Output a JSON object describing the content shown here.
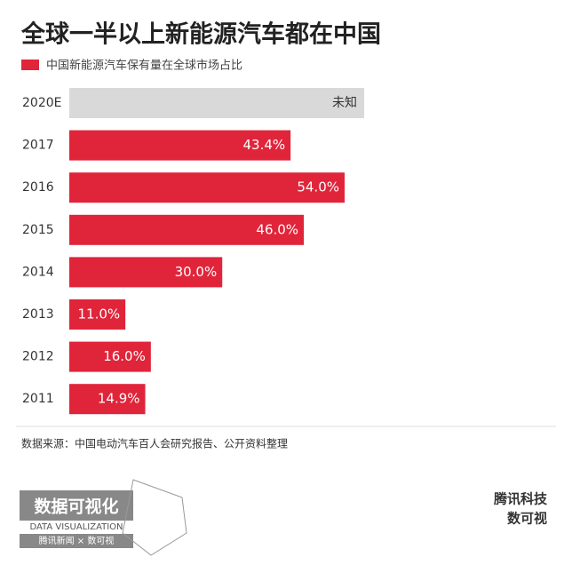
{
  "chart_data": {
    "type": "bar",
    "orientation": "horizontal",
    "title": "全球一半以上新能源汽车都在中国",
    "series_name": "中国新能源汽车保有量在全球市场占比",
    "categories": [
      "2020E",
      "2017",
      "2016",
      "2015",
      "2014",
      "2013",
      "2012",
      "2011"
    ],
    "values": [
      null,
      43.4,
      54.0,
      46.0,
      30.0,
      11.0,
      16.0,
      14.9
    ],
    "value_labels": [
      "未知",
      "43.4%",
      "54.0%",
      "46.0%",
      "30.0%",
      "11.0%",
      "16.0%",
      "14.9%"
    ],
    "color": "#e0253a",
    "unknown_color": "#d9d9d9",
    "source": "数据来源：中国电动汽车百人会研究报告、公开资料整理"
  },
  "footer": {
    "logo_title": "数据可视化",
    "logo_subtitle": "DATA VISUALIZATION",
    "logo_brand": "腾讯新闻 × 数可视",
    "right_line1": "腾讯科技",
    "right_line2": "数可视"
  }
}
